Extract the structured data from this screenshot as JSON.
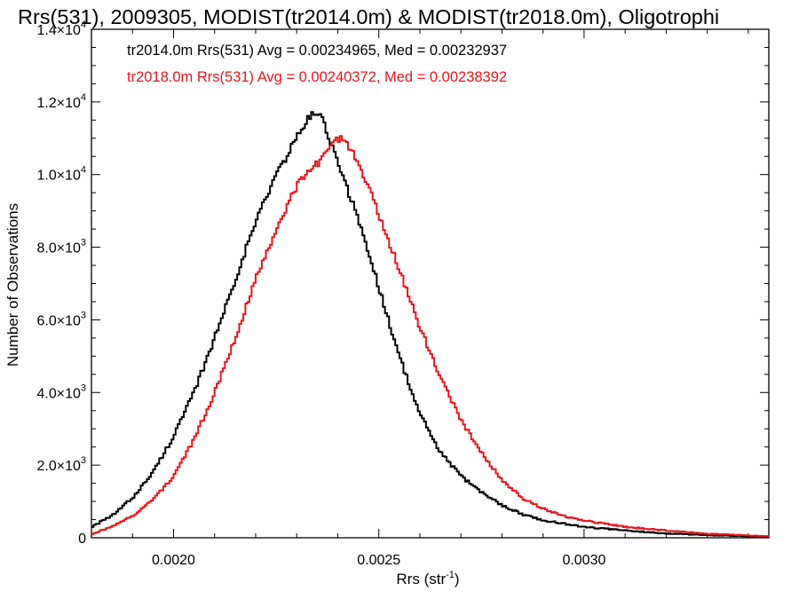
{
  "chart_data": {
    "type": "line",
    "title": "Rrs(531), 2009305, MODIST(tr2014.0m) & MODIST(tr2018.0m), Oligotrophi",
    "xlabel": "Rrs (str",
    "xlabel_sup": "-1",
    "xlabel_close": ")",
    "ylabel": "Number of Observations",
    "xlim": [
      0.0018,
      0.00345
    ],
    "ylim": [
      0,
      14000
    ],
    "grid": false,
    "step": true,
    "x_ticks": [
      {
        "value": 0.002,
        "label": "0.0020"
      },
      {
        "value": 0.0025,
        "label": "0.0025"
      },
      {
        "value": 0.003,
        "label": "0.0030"
      }
    ],
    "y_ticks": [
      {
        "value": 0,
        "label": "0",
        "sup": ""
      },
      {
        "value": 2000,
        "label": "2.0×10",
        "sup": "3"
      },
      {
        "value": 4000,
        "label": "4.0×10",
        "sup": "3"
      },
      {
        "value": 6000,
        "label": "6.0×10",
        "sup": "3"
      },
      {
        "value": 8000,
        "label": "8.0×10",
        "sup": "3"
      },
      {
        "value": 10000,
        "label": "1.0×10",
        "sup": "4"
      },
      {
        "value": 12000,
        "label": "1.2×10",
        "sup": "4"
      },
      {
        "value": 14000,
        "label": "1.4×10",
        "sup": "4"
      }
    ],
    "annotations": [
      {
        "text": "tr2014.0m Rrs(531) Avg = 0.00234965, Med = 0.00232937",
        "color": "#000000"
      },
      {
        "text": "tr2018.0m Rrs(531) Avg = 0.00240372, Med = 0.00238392",
        "color": "#e8161b"
      }
    ],
    "series": [
      {
        "color": "#000000",
        "x": [
          0.0018,
          0.00185,
          0.0019,
          0.00195,
          0.002,
          0.00205,
          0.0021,
          0.00215,
          0.0022,
          0.00225,
          0.0023,
          0.00232,
          0.00234,
          0.00236,
          0.00238,
          0.0024,
          0.00245,
          0.0025,
          0.00255,
          0.0026,
          0.00265,
          0.0027,
          0.00275,
          0.0028,
          0.00285,
          0.0029,
          0.003,
          0.0031,
          0.0032,
          0.0033,
          0.00345
        ],
        "y": [
          300,
          600,
          1100,
          1800,
          2800,
          4000,
          5500,
          7100,
          8700,
          10000,
          11000,
          11400,
          11700,
          11600,
          11000,
          10300,
          8800,
          6900,
          5000,
          3400,
          2350,
          1700,
          1250,
          900,
          650,
          480,
          300,
          200,
          120,
          70,
          30
        ]
      },
      {
        "color": "#e8161b",
        "x": [
          0.0018,
          0.00185,
          0.0019,
          0.00195,
          0.002,
          0.00205,
          0.0021,
          0.00215,
          0.0022,
          0.00225,
          0.0023,
          0.00235,
          0.00238,
          0.0024,
          0.00242,
          0.00245,
          0.0025,
          0.00255,
          0.0026,
          0.00265,
          0.0027,
          0.00275,
          0.0028,
          0.00285,
          0.0029,
          0.00295,
          0.003,
          0.0031,
          0.0032,
          0.0033,
          0.00345
        ],
        "y": [
          100,
          300,
          600,
          1050,
          1700,
          2700,
          4000,
          5500,
          7100,
          8500,
          9700,
          10300,
          10800,
          11000,
          10900,
          10400,
          8900,
          7400,
          5800,
          4400,
          3250,
          2350,
          1600,
          1100,
          800,
          600,
          480,
          300,
          200,
          110,
          40
        ]
      }
    ]
  }
}
